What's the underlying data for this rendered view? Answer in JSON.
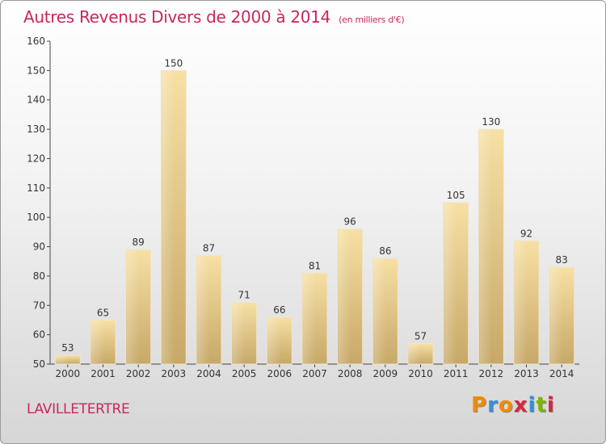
{
  "title": "Autres Revenus Divers de 2000 à 2014",
  "subtitle": "(en milliers d'€)",
  "commune": "LAVILLETERTRE",
  "logo": {
    "letters": [
      "P",
      "r",
      "o",
      "x",
      "i",
      "t",
      "i"
    ],
    "colors": [
      "#f08c00",
      "#3a8fd6",
      "#f08c00",
      "#d6283c",
      "#3a8fd6",
      "#7ab800",
      "#d6283c"
    ]
  },
  "colors": {
    "title": "#c8285a",
    "bar_light": "#f5dc9a",
    "bar_dark": "#c9ab6a"
  },
  "chart_data": {
    "type": "bar",
    "categories": [
      "2000",
      "2001",
      "2002",
      "2003",
      "2004",
      "2005",
      "2006",
      "2007",
      "2008",
      "2009",
      "2010",
      "2011",
      "2012",
      "2013",
      "2014"
    ],
    "values": [
      53,
      65,
      89,
      150,
      87,
      71,
      66,
      81,
      96,
      86,
      57,
      105,
      130,
      92,
      83
    ],
    "ylim": [
      50,
      160
    ],
    "yticks": [
      50,
      60,
      70,
      80,
      90,
      100,
      110,
      120,
      130,
      140,
      150,
      160
    ],
    "grid": false
  }
}
